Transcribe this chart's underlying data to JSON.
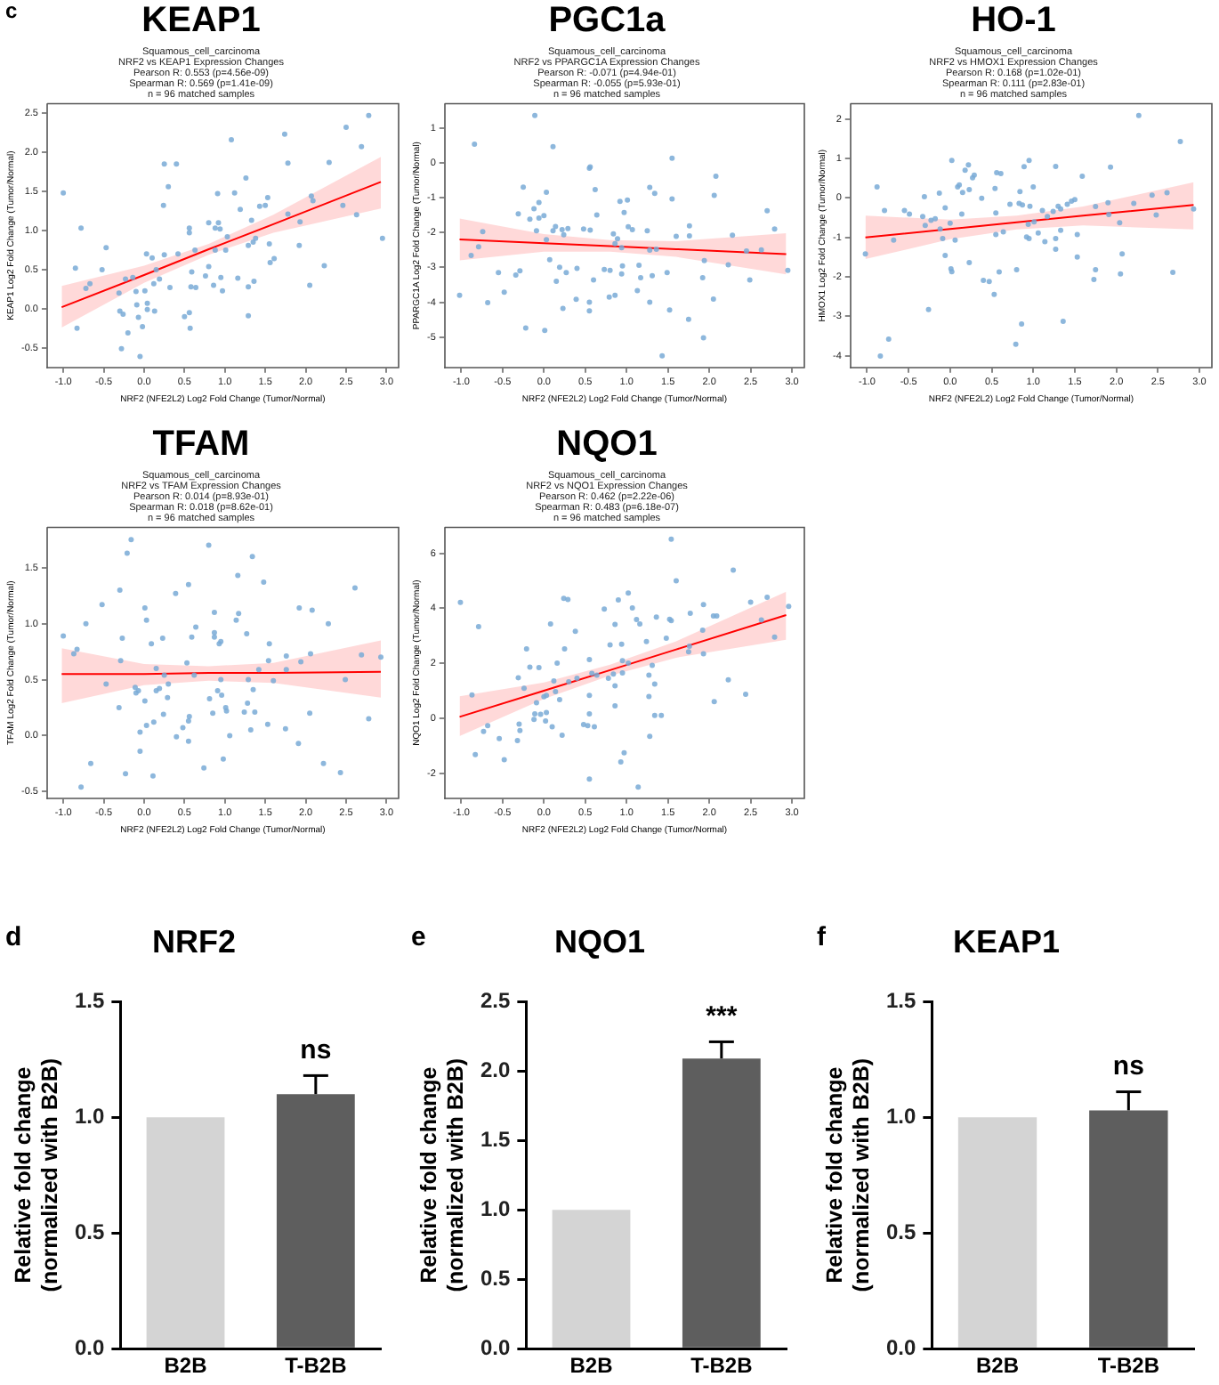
{
  "chart_data": [
    {
      "type": "scatter",
      "title": "KEAP1",
      "subtitle": "Squamous_cell_carcinoma\nNRF2 vs KEAP1 Expression Changes\nPearson R: 0.553 (p=4.56e-09)\nSpearman R: 0.569 (p=1.41e-09)\nn = 96 matched samples",
      "xlabel": "NRF2 (NFE2L2) Log2 Fold Change (Tumor/Normal)",
      "ylabel": "KEAP1 Log2 Fold Change (Tumor/Normal)",
      "annotations": [
        "c"
      ],
      "xlim": [
        -1.2,
        3.15
      ],
      "xticks": [
        {
          "value": -1,
          "label": "-1.0"
        },
        -0.5,
        {
          "value": 0,
          "label": "0.0"
        },
        0.5,
        {
          "value": 1,
          "label": "1.0"
        },
        1.5,
        {
          "value": 2,
          "label": "2.0"
        },
        2.5,
        {
          "value": 3,
          "label": "3.0"
        }
      ],
      "ylim": [
        -0.75,
        2.62
      ],
      "yticks": [
        -0.5,
        {
          "value": 0,
          "label": "0.0"
        },
        0.5,
        {
          "value": 1,
          "label": "1.0"
        },
        1.5,
        {
          "value": 2,
          "label": "2.0"
        },
        2.5
      ],
      "series": [
        {
          "type": "scatter",
          "marker": "circle",
          "color": "#79aad6",
          "x": [
            -1.0,
            -0.85,
            -0.78,
            -0.83,
            -0.72,
            -0.67,
            -0.47,
            -0.52,
            -0.31,
            -0.23,
            -0.3,
            -0.26,
            -0.28,
            -0.2,
            -0.14,
            -0.1,
            -0.09,
            -0.07,
            -0.05,
            -0.02,
            0.03,
            0.01,
            0.04,
            0.04,
            0.1,
            0.13,
            0.15,
            0.19,
            0.12,
            0.25,
            0.24,
            0.25,
            0.3,
            0.32,
            0.4,
            0.42,
            0.5,
            0.56,
            0.57,
            0.56,
            0.56,
            0.59,
            0.58,
            0.64,
            0.63,
            0.76,
            0.8,
            0.8,
            0.86,
            0.88,
            0.88,
            0.91,
            0.92,
            0.94,
            0.95,
            0.97,
            1.03,
            1.01,
            1.08,
            1.12,
            1.16,
            1.19,
            1.26,
            1.29,
            1.29,
            1.29,
            1.33,
            1.35,
            1.38,
            1.36,
            1.43,
            1.5,
            1.53,
            1.56,
            1.55,
            1.61,
            1.74,
            1.78,
            1.78,
            1.93,
            1.92,
            2.05,
            2.07,
            2.09,
            2.23,
            2.29,
            2.46,
            2.5,
            2.63,
            2.69,
            2.78,
            2.95
          ],
          "values": [
            1.48,
            0.52,
            1.03,
            -0.25,
            0.26,
            0.32,
            0.78,
            0.5,
            0.2,
            0.38,
            -0.03,
            -0.07,
            -0.51,
            -0.31,
            0.4,
            0.22,
            0.05,
            -0.11,
            -0.61,
            -0.23,
            0.7,
            0.23,
            0.07,
            -0.01,
            0.65,
            -0.03,
            0.5,
            0.38,
            0.32,
            1.85,
            1.32,
            0.69,
            1.56,
            0.27,
            1.85,
            0.7,
            -0.1,
            -0.05,
            -0.25,
            1.03,
            0.97,
            0.47,
            0.28,
            0.27,
            0.75,
            0.42,
            1.1,
            0.54,
            0.3,
            0.75,
            1.03,
            1.47,
            1.1,
            1.02,
            0.4,
            0.23,
            0.92,
            0.75,
            2.16,
            1.48,
            0.39,
            1.27,
            1.67,
            0.81,
            -0.09,
            0.28,
            1.13,
            0.85,
            0.9,
            0.35,
            1.31,
            1.32,
            1.42,
            0.59,
            0.83,
            0.64,
            2.23,
            1.86,
            1.21,
            1.11,
            0.81,
            0.3,
            1.44,
            1.38,
            0.55,
            1.87,
            1.32,
            2.32,
            1.2,
            2.07,
            2.47,
            0.9
          ]
        },
        {
          "type": "line",
          "color": "#ff0000",
          "x": [
            -1.02,
            0,
            0.8,
            1.6,
            2.93
          ],
          "values": [
            0.02,
            0.43,
            0.76,
            1.08,
            1.62
          ],
          "lower": [
            -0.24,
            0.33,
            0.69,
            0.97,
            1.28
          ],
          "upper": [
            0.29,
            0.55,
            0.83,
            1.2,
            1.94
          ]
        }
      ]
    },
    {
      "type": "scatter",
      "title": "PGC1a",
      "subtitle": "Squamous_cell_carcinoma\nNRF2 vs PPARGC1A Expression Changes\nPearson R: -0.071 (p=4.94e-01)\nSpearman R: -0.055 (p=5.93e-01)\nn = 96 matched samples",
      "xlabel": "NRF2 (NFE2L2) Log2 Fold Change (Tumor/Normal)",
      "ylabel": "PPARGC1A Log2 Fold Change (Tumor/Normal)",
      "xlim": [
        -1.2,
        3.15
      ],
      "xticks": [
        {
          "value": -1,
          "label": "-1.0"
        },
        -0.5,
        {
          "value": 0,
          "label": "0.0"
        },
        0.5,
        {
          "value": 1,
          "label": "1.0"
        },
        1.5,
        {
          "value": 2,
          "label": "2.0"
        },
        2.5,
        {
          "value": 3,
          "label": "3.0"
        }
      ],
      "ylim": [
        -5.87,
        1.69
      ],
      "yticks": [
        -5,
        -4,
        -3,
        -2,
        -1,
        0,
        1
      ],
      "series": [
        {
          "type": "scatter",
          "marker": "circle",
          "color": "#79aad6",
          "x": [
            -1.02,
            -0.84,
            -0.88,
            -0.79,
            -0.74,
            -0.68,
            -0.55,
            -0.48,
            -0.34,
            -0.31,
            -0.29,
            -0.25,
            -0.22,
            -0.17,
            -0.12,
            -0.11,
            -0.09,
            -0.06,
            -0.06,
            0.0,
            0.01,
            0.03,
            0.03,
            0.07,
            0.11,
            0.11,
            0.14,
            0.15,
            0.19,
            0.22,
            0.23,
            0.24,
            0.27,
            0.29,
            0.39,
            0.4,
            0.48,
            0.55,
            0.56,
            0.56,
            0.55,
            0.55,
            0.6,
            0.62,
            0.64,
            0.73,
            0.79,
            0.8,
            0.84,
            0.86,
            0.86,
            0.89,
            0.92,
            0.94,
            0.95,
            0.94,
            0.97,
            1.02,
            1.01,
            1.07,
            1.13,
            1.15,
            1.17,
            1.25,
            1.28,
            1.28,
            1.28,
            1.31,
            1.34,
            1.36,
            1.43,
            1.49,
            1.52,
            1.55,
            1.55,
            1.6,
            1.75,
            1.76,
            1.76,
            1.92,
            1.93,
            1.94,
            2.05,
            2.06,
            2.08,
            2.23,
            2.28,
            2.45,
            2.49,
            2.63,
            2.7,
            2.79,
            2.95
          ],
          "values": [
            -3.8,
            0.53,
            -2.66,
            -2.41,
            -1.98,
            -4.01,
            -3.15,
            -3.71,
            -3.22,
            -1.47,
            -3.1,
            -0.7,
            -4.74,
            -1.62,
            -1.32,
            1.35,
            -1.95,
            -1.59,
            -1.14,
            -1.52,
            -4.81,
            -0.85,
            -2.21,
            -2.78,
            -1.95,
            0.46,
            -1.83,
            -3.4,
            -3.0,
            -1.92,
            -4.18,
            -2.07,
            -3.15,
            -1.89,
            -3.92,
            -3.03,
            -1.9,
            -0.16,
            -0.12,
            -1.93,
            -4.0,
            -4.25,
            -3.36,
            -0.77,
            -1.5,
            -3.06,
            -3.85,
            -3.09,
            -2.04,
            -3.8,
            -2.32,
            -2.18,
            -1.11,
            -3.19,
            -2.96,
            -2.44,
            -1.43,
            -1.84,
            -1.07,
            -1.92,
            -3.67,
            -2.94,
            -3.3,
            -1.95,
            -4.0,
            -0.71,
            -2.51,
            -3.24,
            -0.88,
            -2.48,
            -5.54,
            -3.15,
            -4.22,
            0.13,
            -1.04,
            -2.11,
            -4.49,
            -1.81,
            -2.1,
            -3.3,
            -5.02,
            -2.81,
            -3.91,
            -0.94,
            -0.39,
            -2.93,
            -2.08,
            -2.53,
            -3.36,
            -2.5,
            -1.38,
            -1.9,
            -3.09
          ]
        },
        {
          "type": "line",
          "color": "#ff0000",
          "x": [
            -1.02,
            0,
            0.8,
            1.6,
            2.93
          ],
          "values": [
            -2.2,
            -2.31,
            -2.39,
            -2.48,
            -2.62
          ],
          "lower": [
            -2.8,
            -2.55,
            -2.55,
            -2.7,
            -3.2
          ],
          "upper": [
            -1.6,
            -2.05,
            -2.22,
            -2.25,
            -2.02
          ]
        }
      ]
    },
    {
      "type": "scatter",
      "title": "HO-1",
      "subtitle": "Squamous_cell_carcinoma\nNRF2 vs HMOX1 Expression Changes\nPearson R: 0.168 (p=1.02e-01)\nSpearman R: 0.111 (p=2.83e-01)\nn = 96 matched samples",
      "xlabel": "NRF2 (NFE2L2) Log2 Fold Change (Tumor/Normal)",
      "ylabel": "HMOX1 Log2 Fold Change (Tumor/Normal)",
      "xlim": [
        -1.2,
        3.15
      ],
      "xticks": [
        {
          "value": -1,
          "label": "-1.0"
        },
        -0.5,
        {
          "value": 0,
          "label": "0.0"
        },
        0.5,
        {
          "value": 1,
          "label": "1.0"
        },
        1.5,
        {
          "value": 2,
          "label": "2.0"
        },
        2.5,
        {
          "value": 3,
          "label": "3.0"
        }
      ],
      "ylim": [
        -4.3,
        2.39
      ],
      "yticks": [
        -4,
        -3,
        -2,
        -1,
        0,
        1,
        2
      ],
      "series": [
        {
          "type": "scatter",
          "marker": "circle",
          "color": "#79aad6",
          "x": [
            -1.02,
            -0.88,
            -0.84,
            -0.79,
            -0.74,
            -0.68,
            -0.55,
            -0.49,
            -0.33,
            -0.31,
            -0.3,
            -0.26,
            -0.23,
            -0.18,
            -0.13,
            -0.12,
            -0.09,
            -0.06,
            -0.06,
            0.0,
            0.01,
            0.02,
            0.02,
            0.06,
            0.09,
            0.11,
            0.14,
            0.15,
            0.18,
            0.22,
            0.23,
            0.23,
            0.27,
            0.29,
            0.38,
            0.4,
            0.47,
            0.53,
            0.54,
            0.55,
            0.55,
            0.56,
            0.59,
            0.61,
            0.64,
            0.72,
            0.8,
            0.79,
            0.83,
            0.84,
            0.86,
            0.87,
            0.89,
            0.92,
            0.95,
            0.95,
            0.96,
            0.94,
            1.0,
            1.01,
            1.06,
            1.11,
            1.14,
            1.17,
            1.24,
            1.27,
            1.27,
            1.27,
            1.3,
            1.33,
            1.33,
            1.36,
            1.41,
            1.46,
            1.5,
            1.53,
            1.53,
            1.59,
            1.73,
            1.75,
            1.75,
            1.9,
            1.91,
            1.93,
            2.04,
            2.05,
            2.07,
            2.21,
            2.27,
            2.43,
            2.48,
            2.61,
            2.68,
            2.77,
            2.93
          ],
          "values": [
            -1.42,
            0.28,
            -4.01,
            -0.32,
            -3.58,
            -1.07,
            -0.32,
            -0.41,
            -0.47,
            0.03,
            -0.7,
            -2.83,
            -0.57,
            -0.53,
            0.12,
            -0.79,
            -1.03,
            -0.25,
            -1.46,
            -0.64,
            -1.8,
            0.95,
            -1.87,
            -1.07,
            0.28,
            0.33,
            -0.41,
            0.14,
            0.7,
            0.84,
            0.21,
            -1.64,
            0.51,
            0.58,
            -0.01,
            -2.09,
            -2.12,
            -2.45,
            0.24,
            -0.38,
            -0.93,
            0.64,
            -1.88,
            0.62,
            -0.86,
            -0.16,
            -1.82,
            -3.71,
            -0.14,
            0.16,
            -3.2,
            -0.18,
            0.79,
            -0.99,
            0.95,
            -1.03,
            -0.21,
            -0.67,
            0.28,
            -0.61,
            -0.89,
            -0.32,
            -1.11,
            -0.47,
            -0.34,
            0.8,
            -1.03,
            -1.3,
            -0.21,
            -0.82,
            -0.28,
            -3.13,
            -0.16,
            -0.08,
            -0.04,
            -0.93,
            -1.5,
            0.55,
            -2.07,
            -1.82,
            -0.22,
            -0.12,
            -0.42,
            0.78,
            -0.63,
            -1.93,
            -1.42,
            -0.14,
            2.09,
            0.07,
            -0.43,
            0.13,
            -1.89,
            1.43,
            -0.28
          ]
        },
        {
          "type": "line",
          "color": "#ff0000",
          "x": [
            -1.02,
            0,
            0.8,
            1.6,
            2.93
          ],
          "values": [
            -1.0,
            -0.79,
            -0.62,
            -0.45,
            -0.18
          ],
          "lower": [
            -1.55,
            -1.05,
            -0.8,
            -0.7,
            -0.8
          ],
          "upper": [
            -0.45,
            -0.55,
            -0.45,
            -0.22,
            0.4
          ]
        }
      ]
    },
    {
      "type": "scatter",
      "title": "TFAM",
      "subtitle": "Squamous_cell_carcinoma\nNRF2 vs TFAM Expression Changes\nPearson R: 0.014 (p=8.93e-01)\nSpearman R: 0.018 (p=8.62e-01)\nn = 96 matched samples",
      "xlabel": "NRF2 (NFE2L2) Log2 Fold Change (Tumor/Normal)",
      "ylabel": "TFAM Log2 Fold Change (Tumor/Normal)",
      "xlim": [
        -1.2,
        3.15
      ],
      "xticks": [
        {
          "value": -1,
          "label": "-1.0"
        },
        -0.5,
        {
          "value": 0,
          "label": "0.0"
        },
        0.5,
        {
          "value": 1,
          "label": "1.0"
        },
        1.5,
        {
          "value": 2,
          "label": "2.0"
        },
        2.5,
        {
          "value": 3,
          "label": "3.0"
        }
      ],
      "ylim": [
        -0.56,
        1.86
      ],
      "yticks": [
        -0.5,
        {
          "value": 0,
          "label": "0.0"
        },
        0.5,
        {
          "value": 1,
          "label": "1.0"
        },
        1.5
      ],
      "series": [
        {
          "type": "scatter",
          "marker": "circle",
          "color": "#79aad6",
          "x": [
            -1.0,
            -0.87,
            -0.83,
            -0.78,
            -0.72,
            -0.66,
            -0.52,
            -0.47,
            -0.31,
            -0.29,
            -0.3,
            -0.27,
            -0.23,
            -0.21,
            -0.16,
            -0.11,
            -0.1,
            -0.07,
            -0.05,
            -0.05,
            0.01,
            0.01,
            0.03,
            0.03,
            0.09,
            0.11,
            0.12,
            0.15,
            0.15,
            0.19,
            0.23,
            0.24,
            0.25,
            0.29,
            0.3,
            0.39,
            0.4,
            0.48,
            0.53,
            0.55,
            0.55,
            0.56,
            0.55,
            0.59,
            0.62,
            0.64,
            0.74,
            0.8,
            0.81,
            0.85,
            0.87,
            0.87,
            0.87,
            0.91,
            0.93,
            0.95,
            0.95,
            0.96,
            0.98,
            1.01,
            1.02,
            1.06,
            1.14,
            1.16,
            1.17,
            1.24,
            1.27,
            1.28,
            1.29,
            1.32,
            1.34,
            1.35,
            1.37,
            1.42,
            1.48,
            1.53,
            1.55,
            1.54,
            1.6,
            1.75,
            1.76,
            1.76,
            1.91,
            1.92,
            1.94,
            2.05,
            2.06,
            2.08,
            2.22,
            2.28,
            2.43,
            2.49,
            2.61,
            2.69,
            2.78,
            2.93
          ],
          "values": [
            0.89,
            0.73,
            0.77,
            -0.46,
            1.0,
            -0.25,
            1.17,
            0.46,
            0.25,
            0.67,
            1.3,
            0.87,
            -0.34,
            1.63,
            1.75,
            0.43,
            0.38,
            0.4,
            0.03,
            -0.14,
            0.31,
            1.14,
            1.03,
            0.09,
            0.82,
            -0.36,
            0.12,
            0.6,
            0.4,
            0.42,
            0.87,
            0.19,
            0.54,
            0.34,
            0.46,
            1.27,
            -0.01,
            0.07,
            0.65,
            1.35,
            0.13,
            0.17,
            -0.05,
            0.88,
            0.54,
            0.97,
            -0.29,
            1.7,
            0.33,
            0.2,
            1.1,
            0.92,
            0.88,
            0.4,
            0.82,
            0.84,
            0.5,
            0.36,
            -0.21,
            0.25,
            0.22,
            0.0,
            1.03,
            1.43,
            1.09,
            0.21,
            0.91,
            0.29,
            0.5,
            0.05,
            1.6,
            0.41,
            0.21,
            0.59,
            1.37,
            0.1,
            0.82,
            0.67,
            0.49,
            0.06,
            0.71,
            0.59,
            -0.07,
            1.14,
            0.66,
            0.2,
            0.73,
            1.12,
            -0.25,
            1.0,
            -0.33,
            0.5,
            1.32,
            0.72,
            0.15,
            0.7
          ]
        },
        {
          "type": "line",
          "color": "#ff0000",
          "x": [
            -1.02,
            0,
            0.8,
            1.6,
            2.93
          ],
          "values": [
            0.55,
            0.55,
            0.56,
            0.56,
            0.57
          ],
          "lower": [
            0.29,
            0.45,
            0.49,
            0.47,
            0.34
          ],
          "upper": [
            0.78,
            0.64,
            0.62,
            0.65,
            0.85
          ]
        }
      ]
    },
    {
      "type": "scatter",
      "title": "NQO1",
      "subtitle": "Squamous_cell_carcinoma\nNRF2 vs NQO1 Expression Changes\nPearson R: 0.462 (p=2.22e-06)\nSpearman R: 0.483 (p=6.18e-07)\nn = 96 matched samples",
      "xlabel": "NRF2 (NFE2L2) Log2 Fold Change (Tumor/Normal)",
      "ylabel": "NQO1 Log2 Fold Change (Tumor/Normal)",
      "xlim": [
        -1.2,
        3.15
      ],
      "xticks": [
        {
          "value": -1,
          "label": "-1.0"
        },
        -0.5,
        {
          "value": 0,
          "label": "0.0"
        },
        0.5,
        {
          "value": 1,
          "label": "1.0"
        },
        1.5,
        {
          "value": 2,
          "label": "2.0"
        },
        2.5,
        {
          "value": 3,
          "label": "3.0"
        }
      ],
      "ylim": [
        -2.91,
        6.94
      ],
      "yticks": [
        -2,
        0,
        2,
        4,
        6
      ],
      "series": [
        {
          "type": "scatter",
          "marker": "circle",
          "color": "#79aad6",
          "x": [
            -1.01,
            -0.87,
            -0.83,
            -0.79,
            -0.73,
            -0.68,
            -0.54,
            -0.48,
            -0.32,
            -0.31,
            -0.3,
            -0.29,
            -0.24,
            -0.21,
            -0.17,
            -0.11,
            -0.12,
            -0.09,
            -0.06,
            -0.04,
            0.0,
            0.02,
            0.03,
            0.03,
            0.08,
            0.1,
            0.12,
            0.14,
            0.16,
            0.19,
            0.22,
            0.24,
            0.25,
            0.29,
            0.3,
            0.38,
            0.4,
            0.48,
            0.53,
            0.55,
            0.55,
            0.55,
            0.55,
            0.58,
            0.61,
            0.64,
            0.73,
            0.78,
            0.8,
            0.84,
            0.86,
            0.86,
            0.86,
            0.9,
            0.93,
            0.94,
            0.95,
            0.95,
            0.97,
            1.02,
            1.02,
            1.07,
            1.12,
            1.14,
            1.16,
            1.24,
            1.27,
            1.27,
            1.28,
            1.31,
            1.34,
            1.34,
            1.36,
            1.42,
            1.48,
            1.52,
            1.54,
            1.54,
            1.6,
            1.75,
            1.76,
            1.77,
            1.92,
            1.93,
            1.93,
            2.05,
            2.06,
            2.09,
            2.23,
            2.29,
            2.44,
            2.5,
            2.63,
            2.7,
            2.79,
            2.96
          ],
          "values": [
            4.21,
            0.85,
            -1.32,
            3.33,
            -0.48,
            -0.27,
            -0.74,
            -1.51,
            -0.81,
            1.47,
            -0.21,
            -0.45,
            1.09,
            2.52,
            1.86,
            0.16,
            -0.04,
            0.56,
            1.84,
            0.14,
            0.78,
            -0.1,
            0.83,
            0.21,
            3.43,
            -0.31,
            1.36,
            0.97,
            2.0,
            0.68,
            -0.62,
            4.36,
            2.52,
            4.32,
            1.32,
            3.16,
            1.45,
            -0.23,
            -0.27,
            2.13,
            0.83,
            0.16,
            -2.21,
            1.63,
            -0.31,
            1.57,
            3.97,
            1.45,
            2.67,
            1.61,
            0.45,
            3.41,
            1.18,
            4.3,
            -1.59,
            2.69,
            2.09,
            1.65,
            -1.26,
            2.0,
            4.55,
            4.01,
            3.59,
            -2.5,
            3.43,
            2.79,
            1.57,
            0.79,
            -0.66,
            1.92,
            1.24,
            0.1,
            3.68,
            0.1,
            2.91,
            3.6,
            3.55,
            6.51,
            5.0,
            2.42,
            2.62,
            3.82,
            3.2,
            2.34,
            4.13,
            3.72,
            0.6,
            3.72,
            1.4,
            5.39,
            0.87,
            4.22,
            3.57,
            4.4,
            2.95,
            4.07
          ]
        },
        {
          "type": "line",
          "color": "#ff0000",
          "x": [
            -1.02,
            0,
            0.8,
            1.6,
            2.93
          ],
          "values": [
            0.05,
            1.0,
            1.75,
            2.5,
            3.75
          ],
          "lower": [
            -0.65,
            0.7,
            1.55,
            2.2,
            2.85
          ],
          "upper": [
            0.8,
            1.3,
            1.95,
            2.8,
            4.6
          ]
        }
      ]
    },
    {
      "type": "bar",
      "title": "NRF2",
      "ylabel": "Relative fold change\n(normalized with B2B)",
      "annotations": [
        "d",
        "ns"
      ],
      "categories": [
        "B2B",
        "T-B2B"
      ],
      "values": [
        1.0,
        1.1
      ],
      "colors": [
        "#d4d4d4",
        "#5e5e5e"
      ],
      "errors": [
        null,
        [
          1.1,
          1.18
        ]
      ],
      "ylim": [
        0,
        1.5
      ],
      "yticks": [
        {
          "value": 0,
          "label": "0.0"
        },
        0.5,
        {
          "value": 1,
          "label": "1.0"
        },
        1.5
      ]
    },
    {
      "type": "bar",
      "title": "NQO1",
      "ylabel": "Relative fold change\n(normalized with B2B)",
      "annotations": [
        "e",
        "***"
      ],
      "categories": [
        "B2B",
        "T-B2B"
      ],
      "values": [
        1.0,
        2.09
      ],
      "colors": [
        "#d4d4d4",
        "#5e5e5e"
      ],
      "errors": [
        null,
        [
          2.09,
          2.21
        ]
      ],
      "ylim": [
        0,
        2.5
      ],
      "yticks": [
        {
          "value": 0,
          "label": "0.0"
        },
        0.5,
        {
          "value": 1,
          "label": "1.0"
        },
        1.5,
        {
          "value": 2,
          "label": "2.0"
        },
        2.5
      ]
    },
    {
      "type": "bar",
      "title": "KEAP1",
      "ylabel": "Relative fold change\n(normalized with B2B)",
      "annotations": [
        "f",
        "ns"
      ],
      "categories": [
        "B2B",
        "T-B2B"
      ],
      "values": [
        1.0,
        1.03
      ],
      "colors": [
        "#d4d4d4",
        "#5e5e5e"
      ],
      "errors": [
        null,
        [
          1.03,
          1.11
        ]
      ],
      "ylim": [
        0,
        1.5
      ],
      "yticks": [
        {
          "value": 0,
          "label": "0.0"
        },
        0.5,
        {
          "value": 1,
          "label": "1.0"
        },
        1.5
      ]
    }
  ]
}
